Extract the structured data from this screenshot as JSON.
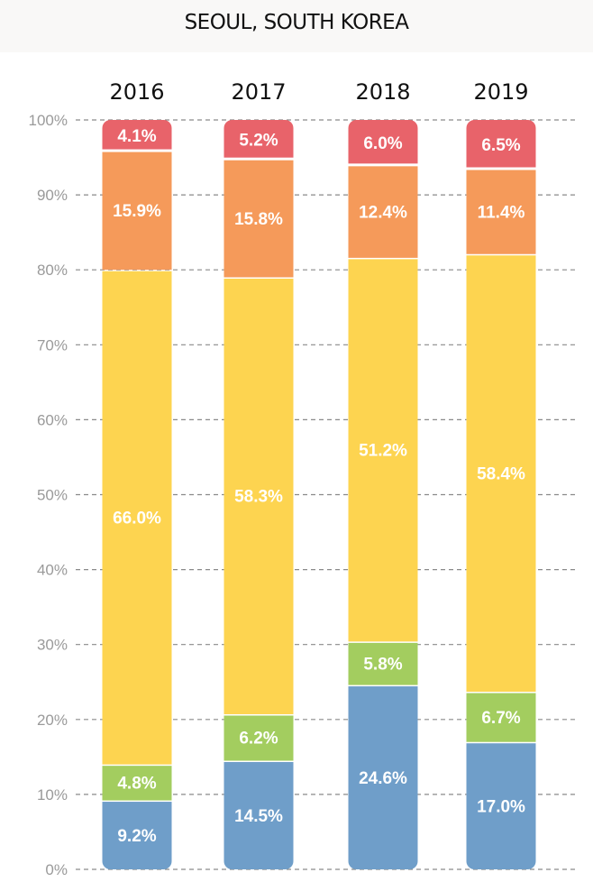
{
  "chart_data": {
    "type": "bar",
    "stacked": true,
    "title": "SEOUL, SOUTH KOREA",
    "categories": [
      "2016",
      "2017",
      "2018",
      "2019"
    ],
    "series": [
      {
        "color": "#6f9ec9",
        "values": [
          9.2,
          14.5,
          24.6,
          17.0
        ]
      },
      {
        "color": "#a3cd5f",
        "values": [
          4.8,
          6.2,
          5.8,
          6.7
        ]
      },
      {
        "color": "#fdd450",
        "values": [
          66.0,
          58.3,
          51.2,
          58.4
        ]
      },
      {
        "color": "#f59a5a",
        "values": [
          15.9,
          15.8,
          12.4,
          11.4
        ]
      },
      {
        "color": "#e8636a",
        "values": [
          4.1,
          5.2,
          6.0,
          6.5
        ]
      }
    ],
    "ylim": [
      0,
      100
    ],
    "yticks": [
      "0%",
      "10%",
      "20%",
      "30%",
      "40%",
      "50%",
      "60%",
      "70%",
      "80%",
      "90%",
      "100%"
    ],
    "grid": true,
    "data_label_suffix": "%",
    "legend": "none"
  }
}
